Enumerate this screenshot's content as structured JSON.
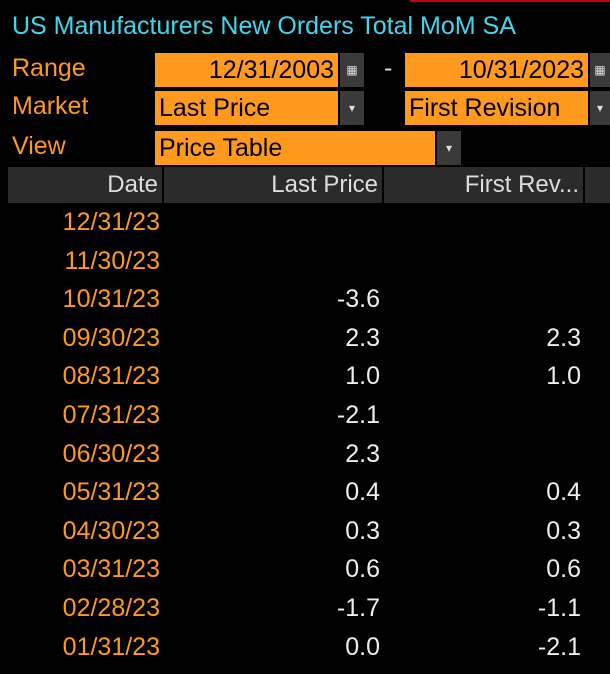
{
  "header": {
    "title": "US Manufacturers New Orders Total MoM SA"
  },
  "controls": {
    "range": {
      "label": "Range",
      "start": "12/31/2003",
      "separator": "-",
      "end": "10/31/2023"
    },
    "market": {
      "label": "Market",
      "first": "Last Price",
      "second": "First Revision"
    },
    "view": {
      "label": "View",
      "value": "Price Table"
    }
  },
  "table": {
    "columns": [
      "Date",
      "Last Price",
      "First Rev..."
    ],
    "rows": [
      [
        "12/31/23",
        null,
        null
      ],
      [
        "11/30/23",
        null,
        null
      ],
      [
        "10/31/23",
        "-3.6",
        null
      ],
      [
        "09/30/23",
        "2.3",
        "2.3"
      ],
      [
        "08/31/23",
        "1.0",
        "1.0"
      ],
      [
        "07/31/23",
        "-2.1",
        null
      ],
      [
        "06/30/23",
        "2.3",
        null
      ],
      [
        "05/31/23",
        "0.4",
        "0.4"
      ],
      [
        "04/30/23",
        "0.3",
        "0.3"
      ],
      [
        "03/31/23",
        "0.6",
        "0.6"
      ],
      [
        "02/28/23",
        "-1.7",
        "-1.1"
      ],
      [
        "01/31/23",
        "0.0",
        "-2.1"
      ]
    ]
  }
}
